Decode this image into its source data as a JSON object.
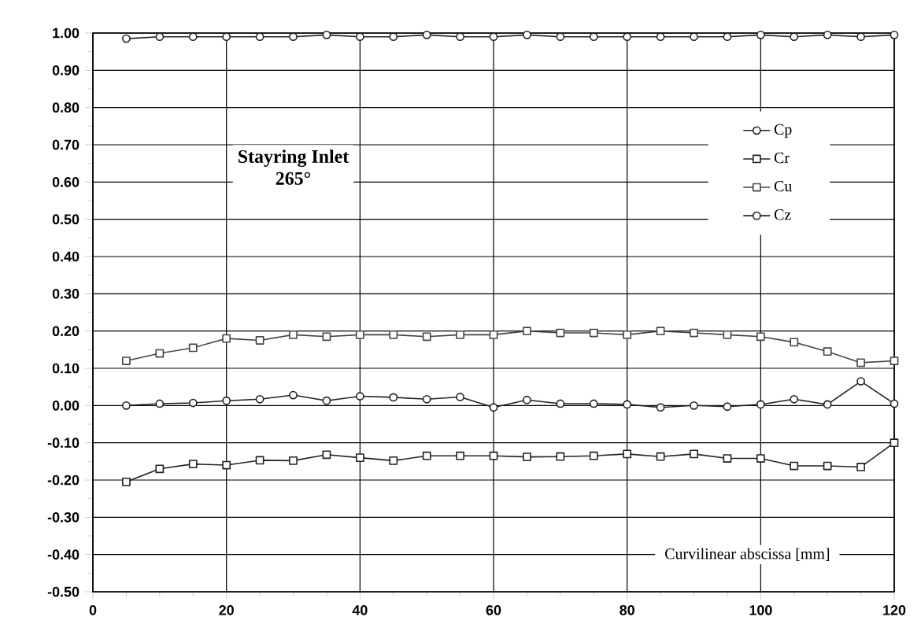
{
  "chart_data": {
    "type": "line",
    "title": "Stayring Inlet",
    "subtitle": "265°",
    "xlabel": "Curvilinear abscissa [mm]",
    "x": [
      5,
      10,
      15,
      20,
      25,
      30,
      35,
      40,
      45,
      50,
      55,
      60,
      65,
      70,
      75,
      80,
      85,
      90,
      95,
      100,
      105,
      110,
      115,
      120
    ],
    "series": [
      {
        "name": "Cp",
        "color": "#222222",
        "marker": "circle",
        "values": [
          0.985,
          0.99,
          0.99,
          0.99,
          0.99,
          0.99,
          0.995,
          0.99,
          0.99,
          0.995,
          0.99,
          0.99,
          0.995,
          0.99,
          0.99,
          0.99,
          0.99,
          0.99,
          0.99,
          0.995,
          0.99,
          0.995,
          0.99,
          0.995
        ]
      },
      {
        "name": "Cr",
        "color": "#222222",
        "marker": "square",
        "values": [
          -0.205,
          -0.17,
          -0.157,
          -0.16,
          -0.147,
          -0.148,
          -0.132,
          -0.14,
          -0.148,
          -0.135,
          -0.135,
          -0.135,
          -0.138,
          -0.137,
          -0.135,
          -0.13,
          -0.137,
          -0.13,
          -0.142,
          -0.142,
          -0.162,
          -0.162,
          -0.165,
          -0.1
        ]
      },
      {
        "name": "Cu",
        "color": "#444444",
        "marker": "square",
        "values": [
          0.12,
          0.14,
          0.155,
          0.18,
          0.175,
          0.19,
          0.185,
          0.19,
          0.19,
          0.185,
          0.19,
          0.19,
          0.2,
          0.195,
          0.195,
          0.19,
          0.2,
          0.195,
          0.19,
          0.185,
          0.17,
          0.145,
          0.115,
          0.12
        ]
      },
      {
        "name": "Cz",
        "color": "#222222",
        "marker": "circle",
        "values": [
          0.0,
          0.005,
          0.007,
          0.013,
          0.017,
          0.028,
          0.013,
          0.025,
          0.022,
          0.017,
          0.023,
          -0.005,
          0.015,
          0.005,
          0.005,
          0.003,
          -0.005,
          0.0,
          -0.003,
          0.003,
          0.017,
          0.003,
          0.065,
          0.005
        ]
      }
    ],
    "xlim": [
      0,
      120
    ],
    "xticks": [
      0,
      20,
      40,
      60,
      80,
      100,
      120
    ],
    "ylim": [
      -0.5,
      1.0
    ],
    "yticks": [
      {
        "value": -0.5,
        "label": "-0.50"
      },
      {
        "value": -0.4,
        "label": "-0.40"
      },
      {
        "value": -0.3,
        "label": "-0.30"
      },
      {
        "value": -0.2,
        "label": "-0.20"
      },
      {
        "value": -0.1,
        "label": "-0.10"
      },
      {
        "value": 0,
        "label": "0.00"
      },
      {
        "value": 0.1,
        "label": "0.10"
      },
      {
        "value": 0.2,
        "label": "0.20"
      },
      {
        "value": 0.3,
        "label": "0.30"
      },
      {
        "value": 0.4,
        "label": "0.40"
      },
      {
        "value": 0.5,
        "label": "0.50"
      },
      {
        "value": 0.6,
        "label": "0.60"
      },
      {
        "value": 0.7,
        "label": "0.70"
      },
      {
        "value": 0.8,
        "label": "0.80"
      },
      {
        "value": 0.9,
        "label": "0.90"
      },
      {
        "value": 1.0,
        "label": "1.00"
      }
    ],
    "grid": true,
    "legend": "right",
    "line_style": "solid"
  }
}
